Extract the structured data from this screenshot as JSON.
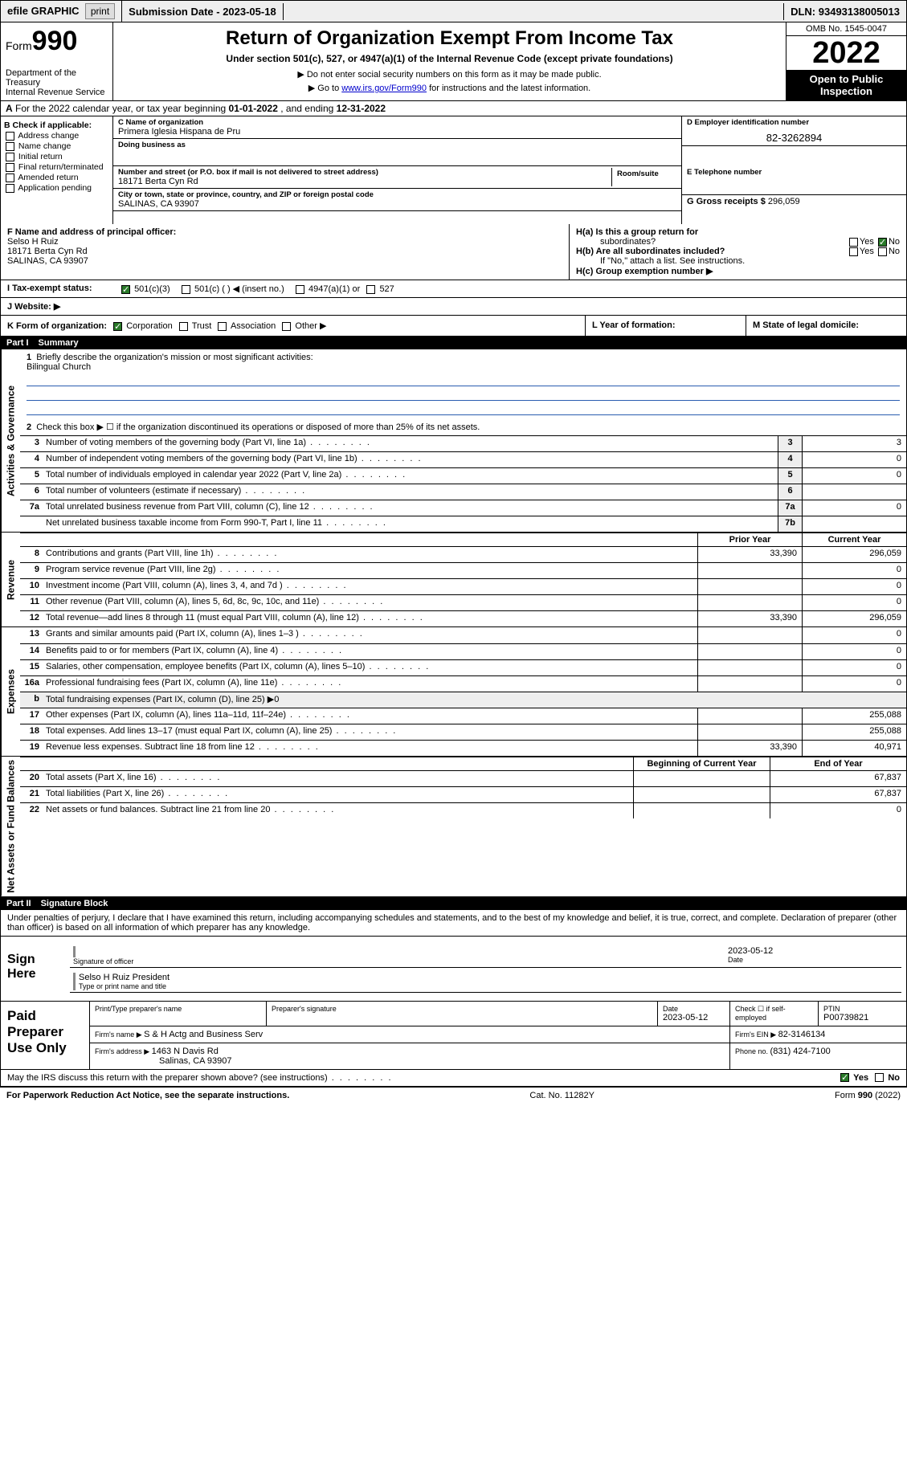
{
  "topbar": {
    "efile": "efile GRAPHIC",
    "print": "print",
    "subdate_label": "Submission Date - ",
    "subdate": "2023-05-18",
    "dln_label": "DLN: ",
    "dln": "93493138005013"
  },
  "header": {
    "form_prefix": "Form",
    "form_num": "990",
    "dept": "Department of the Treasury",
    "irs": "Internal Revenue Service",
    "title": "Return of Organization Exempt From Income Tax",
    "sub1": "Under section 501(c), 527, or 4947(a)(1) of the Internal Revenue Code (except private foundations)",
    "sub2": "▶ Do not enter social security numbers on this form as it may be made public.",
    "sub3_pre": "▶ Go to ",
    "sub3_link": "www.irs.gov/Form990",
    "sub3_post": " for instructions and the latest information.",
    "omb": "OMB No. 1545-0047",
    "year": "2022",
    "inspect": "Open to Public Inspection"
  },
  "rowA": {
    "prefix": "A",
    "text": " For the 2022 calendar year, or tax year beginning ",
    "begin": "01-01-2022",
    "mid": " , and ending ",
    "end": "12-31-2022"
  },
  "colB": {
    "hdr": "B Check if applicable:",
    "items": [
      "Address change",
      "Name change",
      "Initial return",
      "Final return/terminated",
      "Amended return",
      "Application pending"
    ]
  },
  "colC": {
    "name_lbl": "C Name of organization",
    "name": "Primera Iglesia Hispana de Pru",
    "dba_lbl": "Doing business as",
    "dba": "",
    "addr_lbl": "Number and street (or P.O. box if mail is not delivered to street address)",
    "room_lbl": "Room/suite",
    "addr": "18171 Berta Cyn Rd",
    "city_lbl": "City or town, state or province, country, and ZIP or foreign postal code",
    "city": "SALINAS, CA  93907"
  },
  "colD": {
    "lbl": "D Employer identification number",
    "val": "82-3262894"
  },
  "colE": {
    "lbl": "E Telephone number",
    "val": ""
  },
  "colG": {
    "lbl": "G Gross receipts $ ",
    "val": "296,059"
  },
  "rowF": {
    "lbl": "F Name and address of principal officer:",
    "name": "Selso H Ruiz",
    "addr1": "18171 Berta Cyn Rd",
    "addr2": "SALINAS, CA  93907"
  },
  "rowH": {
    "a": "H(a)  Is this a group return for",
    "a2": "subordinates?",
    "b": "H(b)  Are all subordinates included?",
    "b2": "If \"No,\" attach a list. See instructions.",
    "c": "H(c)  Group exemption number ▶",
    "yes": "Yes",
    "no": "No"
  },
  "rowI": {
    "lbl": "I   Tax-exempt status:",
    "c3": "501(c)(3)",
    "c": "501(c) (  ) ◀ (insert no.)",
    "a1": "4947(a)(1) or",
    "s527": "527"
  },
  "rowJ": {
    "lbl": "J   Website: ▶",
    "val": ""
  },
  "rowK": {
    "lbl": "K Form of organization:",
    "corp": "Corporation",
    "trust": "Trust",
    "assoc": "Association",
    "other": "Other ▶",
    "l_lbl": "L Year of formation:",
    "l_val": "",
    "m_lbl": "M State of legal domicile:",
    "m_val": ""
  },
  "part1": {
    "hdr": "Part I",
    "title": "Summary"
  },
  "summary": {
    "sections": [
      {
        "vlabel": "Activities & Governance",
        "type": "mission_block",
        "mission_num": "1",
        "mission_lbl": "Briefly describe the organization's mission or most significant activities:",
        "mission_txt": "Bilingual Church",
        "line2": "Check this box ▶ ☐  if the organization discontinued its operations or disposed of more than 25% of its net assets.",
        "lines": [
          {
            "n": "3",
            "d": "Number of voting members of the governing body (Part VI, line 1a)",
            "box": "3",
            "v": "3"
          },
          {
            "n": "4",
            "d": "Number of independent voting members of the governing body (Part VI, line 1b)",
            "box": "4",
            "v": "0"
          },
          {
            "n": "5",
            "d": "Total number of individuals employed in calendar year 2022 (Part V, line 2a)",
            "box": "5",
            "v": "0"
          },
          {
            "n": "6",
            "d": "Total number of volunteers (estimate if necessary)",
            "box": "6",
            "v": ""
          },
          {
            "n": "7a",
            "d": "Total unrelated business revenue from Part VIII, column (C), line 12",
            "box": "7a",
            "v": "0"
          },
          {
            "n": "",
            "d": "Net unrelated business taxable income from Form 990-T, Part I, line 11",
            "box": "7b",
            "v": ""
          }
        ]
      },
      {
        "vlabel": "Revenue",
        "type": "two_col",
        "hdr_prior": "Prior Year",
        "hdr_curr": "Current Year",
        "lines": [
          {
            "n": "8",
            "d": "Contributions and grants (Part VIII, line 1h)",
            "p": "33,390",
            "c": "296,059"
          },
          {
            "n": "9",
            "d": "Program service revenue (Part VIII, line 2g)",
            "p": "",
            "c": "0"
          },
          {
            "n": "10",
            "d": "Investment income (Part VIII, column (A), lines 3, 4, and 7d )",
            "p": "",
            "c": "0"
          },
          {
            "n": "11",
            "d": "Other revenue (Part VIII, column (A), lines 5, 6d, 8c, 9c, 10c, and 11e)",
            "p": "",
            "c": "0"
          },
          {
            "n": "12",
            "d": "Total revenue—add lines 8 through 11 (must equal Part VIII, column (A), line 12)",
            "p": "33,390",
            "c": "296,059"
          }
        ]
      },
      {
        "vlabel": "Expenses",
        "type": "two_col",
        "lines": [
          {
            "n": "13",
            "d": "Grants and similar amounts paid (Part IX, column (A), lines 1–3 )",
            "p": "",
            "c": "0"
          },
          {
            "n": "14",
            "d": "Benefits paid to or for members (Part IX, column (A), line 4)",
            "p": "",
            "c": "0"
          },
          {
            "n": "15",
            "d": "Salaries, other compensation, employee benefits (Part IX, column (A), lines 5–10)",
            "p": "",
            "c": "0"
          },
          {
            "n": "16a",
            "d": "Professional fundraising fees (Part IX, column (A), line 11e)",
            "p": "",
            "c": "0"
          },
          {
            "n": "b",
            "d": "Total fundraising expenses (Part IX, column (D), line 25) ▶0",
            "p": "—",
            "c": "—"
          },
          {
            "n": "17",
            "d": "Other expenses (Part IX, column (A), lines 11a–11d, 11f–24e)",
            "p": "",
            "c": "255,088"
          },
          {
            "n": "18",
            "d": "Total expenses. Add lines 13–17 (must equal Part IX, column (A), line 25)",
            "p": "",
            "c": "255,088"
          },
          {
            "n": "19",
            "d": "Revenue less expenses. Subtract line 18 from line 12",
            "p": "33,390",
            "c": "40,971"
          }
        ]
      },
      {
        "vlabel": "Net Assets or Fund Balances",
        "type": "two_col",
        "hdr_prior": "Beginning of Current Year",
        "hdr_curr": "End of Year",
        "lines": [
          {
            "n": "20",
            "d": "Total assets (Part X, line 16)",
            "p": "",
            "c": "67,837"
          },
          {
            "n": "21",
            "d": "Total liabilities (Part X, line 26)",
            "p": "",
            "c": "67,837"
          },
          {
            "n": "22",
            "d": "Net assets or fund balances. Subtract line 21 from line 20",
            "p": "",
            "c": "0"
          }
        ]
      }
    ]
  },
  "part2": {
    "hdr": "Part II",
    "title": "Signature Block"
  },
  "sig": {
    "decl": "Under penalties of perjury, I declare that I have examined this return, including accompanying schedules and statements, and to the best of my knowledge and belief, it is true, correct, and complete. Declaration of preparer (other than officer) is based on all information of which preparer has any knowledge.",
    "sign_here": "Sign Here",
    "sig_officer": "Signature of officer",
    "date_lbl": "Date",
    "date": "2023-05-12",
    "officer_name": "Selso H Ruiz  President",
    "name_lbl": "Type or print name and title"
  },
  "paid": {
    "title": "Paid Preparer Use Only",
    "col_name": "Print/Type preparer's name",
    "col_sig": "Preparer's signature",
    "col_date": "Date",
    "date": "2023-05-12",
    "col_chk": "Check ☐ if self-employed",
    "col_ptin": "PTIN",
    "ptin": "P00739821",
    "firm_name_lbl": "Firm's name   ▶ ",
    "firm_name": "S & H Actg and Business Serv",
    "firm_ein_lbl": "Firm's EIN ▶ ",
    "firm_ein": "82-3146134",
    "firm_addr_lbl": "Firm's address ▶ ",
    "firm_addr1": "1463 N Davis Rd",
    "firm_addr2": "Salinas, CA  93907",
    "phone_lbl": "Phone no. ",
    "phone": "(831) 424-7100"
  },
  "may": {
    "q": "May the IRS discuss this return with the preparer shown above? (see instructions)",
    "yes": "Yes",
    "no": "No"
  },
  "footer": {
    "left": "For Paperwork Reduction Act Notice, see the separate instructions.",
    "mid": "Cat. No. 11282Y",
    "right_pre": "Form ",
    "right_b": "990",
    "right_post": " (2022)"
  }
}
